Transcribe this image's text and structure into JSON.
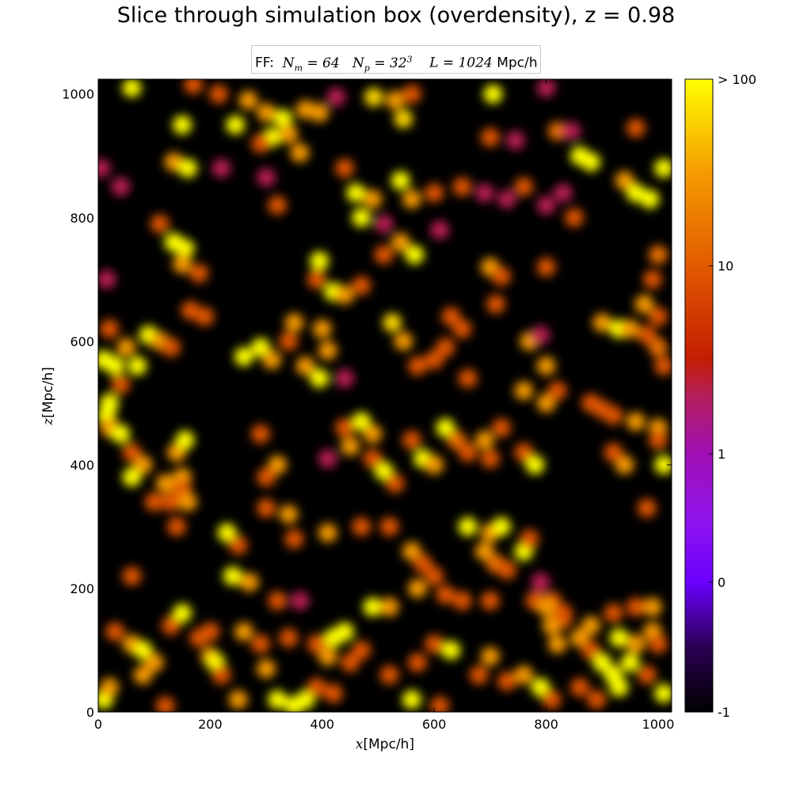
{
  "title": "Slice through simulation box (overdensity), z = 0.98",
  "legend": {
    "prefix": "FF:",
    "nm_value": "64",
    "np_value": "32",
    "np_exp": "3",
    "l_value": "1024",
    "l_unit": "Mpc/h"
  },
  "chart_data": {
    "type": "heatmap",
    "title": "Slice through simulation box (overdensity), z = 0.98",
    "xlabel_var": "x",
    "xlabel_unit": "Mpc/h",
    "ylabel_var": "z",
    "ylabel_unit": "Mpc/h",
    "xlim": [
      0,
      1024
    ],
    "ylim": [
      0,
      1024
    ],
    "x_ticks": [
      0,
      200,
      400,
      600,
      800,
      1000
    ],
    "y_ticks": [
      0,
      200,
      400,
      600,
      800,
      1000
    ],
    "colorbar": {
      "ticks": [
        {
          "label": "-1",
          "frac": 0.0
        },
        {
          "label": "0",
          "frac": 0.205
        },
        {
          "label": "1",
          "frac": 0.408
        },
        {
          "label": "10",
          "frac": 0.705
        },
        {
          "label": "> 100",
          "frac": 1.0
        }
      ],
      "colormap_stops": [
        {
          "frac": 0.0,
          "color": "#000000"
        },
        {
          "frac": 0.1,
          "color": "#2a0050"
        },
        {
          "frac": 0.205,
          "color": "#6a00ff"
        },
        {
          "frac": 0.3,
          "color": "#8f14ee"
        },
        {
          "frac": 0.408,
          "color": "#a010b4"
        },
        {
          "frac": 0.5,
          "color": "#b41f5a"
        },
        {
          "frac": 0.56,
          "color": "#c41e00"
        },
        {
          "frac": 0.705,
          "color": "#e25a00"
        },
        {
          "frac": 0.85,
          "color": "#f59a00"
        },
        {
          "frac": 1.0,
          "color": "#ffff00"
        }
      ]
    },
    "blobs": [
      [
        60,
        1010,
        2.5
      ],
      [
        170,
        1015,
        1
      ],
      [
        245,
        950,
        2.5
      ],
      [
        215,
        1000,
        1
      ],
      [
        268,
        990,
        1.5
      ],
      [
        300,
        970,
        1.5
      ],
      [
        330,
        960,
        2
      ],
      [
        310,
        930,
        2
      ],
      [
        290,
        920,
        1
      ],
      [
        370,
        975,
        1.5
      ],
      [
        395,
        970,
        1.5
      ],
      [
        425,
        995,
        0.5
      ],
      [
        492,
        995,
        1.8
      ],
      [
        530,
        990,
        1.5
      ],
      [
        545,
        960,
        1.8
      ],
      [
        560,
        1000,
        1
      ],
      [
        705,
        1000,
        2
      ],
      [
        800,
        1010,
        0.5
      ],
      [
        150,
        950,
        3
      ],
      [
        135,
        890,
        1.5
      ],
      [
        160,
        880,
        2
      ],
      [
        340,
        935,
        1.5
      ],
      [
        360,
        905,
        1.5
      ],
      [
        700,
        930,
        1
      ],
      [
        745,
        925,
        0.5
      ],
      [
        820,
        940,
        1.2
      ],
      [
        845,
        940,
        0.5
      ],
      [
        860,
        900,
        2.3
      ],
      [
        880,
        890,
        2.3
      ],
      [
        960,
        945,
        1
      ],
      [
        940,
        860,
        1.5
      ],
      [
        5,
        880,
        0.5
      ],
      [
        40,
        850,
        0.5
      ],
      [
        220,
        880,
        0.5
      ],
      [
        300,
        865,
        0.5
      ],
      [
        320,
        820,
        1
      ],
      [
        440,
        880,
        1
      ],
      [
        460,
        840,
        2
      ],
      [
        490,
        830,
        1.5
      ],
      [
        470,
        800,
        2
      ],
      [
        510,
        790,
        0.5
      ],
      [
        540,
        860,
        2
      ],
      [
        560,
        830,
        1.5
      ],
      [
        600,
        840,
        1
      ],
      [
        650,
        850,
        1
      ],
      [
        690,
        840,
        0.5
      ],
      [
        730,
        830,
        0.5
      ],
      [
        760,
        850,
        1
      ],
      [
        800,
        820,
        0.5
      ],
      [
        830,
        840,
        0.5
      ],
      [
        850,
        800,
        1
      ],
      [
        960,
        840,
        2.5
      ],
      [
        985,
        830,
        2.5
      ],
      [
        1010,
        880,
        2
      ],
      [
        110,
        790,
        1
      ],
      [
        135,
        760,
        2
      ],
      [
        155,
        750,
        2
      ],
      [
        150,
        725,
        1.5
      ],
      [
        180,
        710,
        1
      ],
      [
        395,
        730,
        2.5
      ],
      [
        390,
        700,
        1
      ],
      [
        420,
        680,
        2
      ],
      [
        440,
        675,
        1.5
      ],
      [
        470,
        690,
        1
      ],
      [
        540,
        760,
        1.5
      ],
      [
        565,
        740,
        3
      ],
      [
        510,
        740,
        1
      ],
      [
        610,
        780,
        0.5
      ],
      [
        700,
        720,
        1.5
      ],
      [
        720,
        705,
        1
      ],
      [
        800,
        720,
        1
      ],
      [
        990,
        700,
        1
      ],
      [
        1000,
        740,
        1.2
      ],
      [
        975,
        660,
        1.5
      ],
      [
        1000,
        640,
        1
      ],
      [
        15,
        700,
        0.5
      ],
      [
        20,
        620,
        1
      ],
      [
        50,
        590,
        1.5
      ],
      [
        90,
        610,
        2
      ],
      [
        110,
        600,
        1.5
      ],
      [
        130,
        590,
        1
      ],
      [
        165,
        650,
        1
      ],
      [
        190,
        640,
        1
      ],
      [
        260,
        575,
        3
      ],
      [
        290,
        590,
        2
      ],
      [
        310,
        570,
        1.5
      ],
      [
        350,
        630,
        1.5
      ],
      [
        340,
        600,
        1
      ],
      [
        400,
        620,
        1.5
      ],
      [
        410,
        585,
        1.5
      ],
      [
        395,
        540,
        3
      ],
      [
        370,
        560,
        1.5
      ],
      [
        440,
        540,
        0.5
      ],
      [
        525,
        630,
        1.8
      ],
      [
        545,
        600,
        1.5
      ],
      [
        570,
        560,
        1
      ],
      [
        630,
        640,
        1
      ],
      [
        650,
        620,
        1
      ],
      [
        620,
        590,
        1
      ],
      [
        600,
        570,
        1
      ],
      [
        660,
        540,
        1
      ],
      [
        710,
        660,
        1
      ],
      [
        770,
        600,
        1.5
      ],
      [
        790,
        610,
        0.5
      ],
      [
        800,
        560,
        1.5
      ],
      [
        900,
        630,
        1.5
      ],
      [
        930,
        620,
        2
      ],
      [
        950,
        620,
        1.5
      ],
      [
        980,
        610,
        1
      ],
      [
        1000,
        590,
        1.2
      ],
      [
        1010,
        560,
        1
      ],
      [
        10,
        570,
        2.5
      ],
      [
        30,
        560,
        3
      ],
      [
        70,
        560,
        2
      ],
      [
        40,
        530,
        1
      ],
      [
        20,
        500,
        3
      ],
      [
        15,
        480,
        2.5
      ],
      [
        20,
        460,
        1.5
      ],
      [
        40,
        450,
        2
      ],
      [
        60,
        420,
        1
      ],
      [
        80,
        400,
        1.5
      ],
      [
        140,
        420,
        1.5
      ],
      [
        155,
        440,
        2
      ],
      [
        150,
        380,
        1.5
      ],
      [
        150,
        360,
        1
      ],
      [
        130,
        340,
        1
      ],
      [
        160,
        340,
        1.5
      ],
      [
        290,
        450,
        1
      ],
      [
        320,
        400,
        1.5
      ],
      [
        300,
        380,
        1
      ],
      [
        410,
        410,
        0.5
      ],
      [
        450,
        430,
        1.5
      ],
      [
        470,
        470,
        2
      ],
      [
        490,
        450,
        1.5
      ],
      [
        440,
        460,
        1
      ],
      [
        510,
        390,
        3
      ],
      [
        490,
        410,
        1
      ],
      [
        530,
        370,
        1
      ],
      [
        560,
        440,
        1
      ],
      [
        580,
        410,
        2
      ],
      [
        600,
        400,
        1.5
      ],
      [
        620,
        460,
        2
      ],
      [
        640,
        440,
        1.2
      ],
      [
        660,
        420,
        1
      ],
      [
        690,
        440,
        1.5
      ],
      [
        700,
        410,
        1
      ],
      [
        720,
        460,
        1
      ],
      [
        760,
        420,
        1
      ],
      [
        780,
        400,
        2
      ],
      [
        760,
        520,
        1.5
      ],
      [
        800,
        500,
        1.5
      ],
      [
        820,
        520,
        1
      ],
      [
        880,
        500,
        1
      ],
      [
        900,
        490,
        1
      ],
      [
        920,
        480,
        1
      ],
      [
        960,
        470,
        1.5
      ],
      [
        1000,
        460,
        1.5
      ],
      [
        1000,
        440,
        1
      ],
      [
        1010,
        400,
        2
      ],
      [
        940,
        400,
        1.5
      ],
      [
        920,
        420,
        1
      ],
      [
        980,
        330,
        1
      ],
      [
        60,
        380,
        2
      ],
      [
        120,
        370,
        1.5
      ],
      [
        100,
        340,
        1
      ],
      [
        140,
        300,
        1
      ],
      [
        230,
        290,
        2
      ],
      [
        250,
        270,
        1
      ],
      [
        300,
        330,
        1
      ],
      [
        340,
        320,
        1.5
      ],
      [
        350,
        280,
        1
      ],
      [
        410,
        290,
        1.5
      ],
      [
        470,
        300,
        1
      ],
      [
        520,
        300,
        1
      ],
      [
        560,
        260,
        1.5
      ],
      [
        580,
        240,
        1
      ],
      [
        600,
        220,
        1
      ],
      [
        660,
        300,
        2
      ],
      [
        700,
        290,
        1.5
      ],
      [
        720,
        300,
        2
      ],
      [
        690,
        260,
        1.5
      ],
      [
        710,
        240,
        1.2
      ],
      [
        760,
        260,
        2.5
      ],
      [
        770,
        280,
        1
      ],
      [
        730,
        230,
        1
      ],
      [
        790,
        210,
        0.5
      ],
      [
        810,
        180,
        1
      ],
      [
        830,
        150,
        1
      ],
      [
        860,
        120,
        1.5
      ],
      [
        880,
        100,
        1
      ],
      [
        900,
        80,
        2.5
      ],
      [
        920,
        60,
        2
      ],
      [
        930,
        120,
        2
      ],
      [
        960,
        110,
        1.5
      ],
      [
        990,
        130,
        1.5
      ],
      [
        1000,
        110,
        1
      ],
      [
        60,
        220,
        1
      ],
      [
        240,
        220,
        2
      ],
      [
        270,
        210,
        1.5
      ],
      [
        320,
        180,
        1
      ],
      [
        360,
        180,
        0.5
      ],
      [
        490,
        170,
        2.5
      ],
      [
        520,
        170,
        1.5
      ],
      [
        570,
        200,
        1.5
      ],
      [
        620,
        190,
        1
      ],
      [
        650,
        180,
        1
      ],
      [
        700,
        180,
        1
      ],
      [
        780,
        180,
        1
      ],
      [
        800,
        170,
        1.5
      ],
      [
        810,
        140,
        1.5
      ],
      [
        820,
        110,
        1.5
      ],
      [
        830,
        160,
        1
      ],
      [
        880,
        140,
        1.5
      ],
      [
        920,
        160,
        1
      ],
      [
        960,
        170,
        1
      ],
      [
        990,
        170,
        1.5
      ],
      [
        30,
        130,
        1
      ],
      [
        60,
        110,
        1.5
      ],
      [
        80,
        100,
        2
      ],
      [
        100,
        80,
        1.5
      ],
      [
        80,
        60,
        1.5
      ],
      [
        130,
        140,
        1
      ],
      [
        150,
        160,
        2.5
      ],
      [
        180,
        120,
        1
      ],
      [
        200,
        130,
        1
      ],
      [
        200,
        90,
        1.5
      ],
      [
        210,
        80,
        2
      ],
      [
        220,
        60,
        1
      ],
      [
        260,
        130,
        1.5
      ],
      [
        290,
        110,
        1
      ],
      [
        300,
        70,
        1.5
      ],
      [
        340,
        120,
        1
      ],
      [
        390,
        110,
        1
      ],
      [
        420,
        120,
        2.5
      ],
      [
        440,
        130,
        2
      ],
      [
        410,
        90,
        1.5
      ],
      [
        450,
        80,
        1
      ],
      [
        470,
        100,
        1
      ],
      [
        520,
        60,
        1
      ],
      [
        570,
        80,
        1
      ],
      [
        600,
        110,
        1
      ],
      [
        630,
        100,
        2
      ],
      [
        680,
        60,
        1
      ],
      [
        700,
        90,
        1.5
      ],
      [
        730,
        50,
        1
      ],
      [
        760,
        60,
        1.5
      ],
      [
        790,
        40,
        2
      ],
      [
        810,
        20,
        1
      ],
      [
        860,
        40,
        1
      ],
      [
        890,
        20,
        1
      ],
      [
        930,
        40,
        2.5
      ],
      [
        950,
        80,
        2
      ],
      [
        980,
        60,
        1
      ],
      [
        1010,
        30,
        2
      ],
      [
        10,
        20,
        2.5
      ],
      [
        20,
        40,
        1.5
      ],
      [
        120,
        10,
        1
      ],
      [
        250,
        20,
        1.5
      ],
      [
        320,
        20,
        2
      ],
      [
        350,
        10,
        2
      ],
      [
        370,
        20,
        2.5
      ],
      [
        390,
        40,
        1
      ],
      [
        420,
        30,
        1
      ],
      [
        560,
        20,
        2
      ],
      [
        610,
        10,
        1
      ]
    ]
  }
}
